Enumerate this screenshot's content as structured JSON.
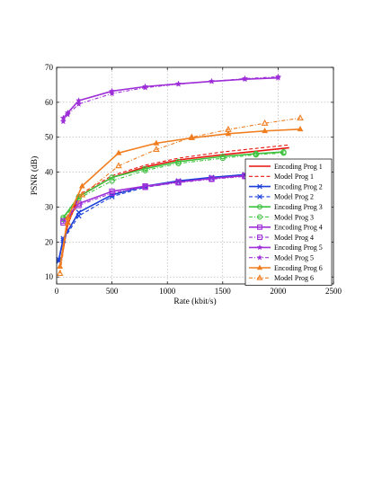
{
  "chart_data": {
    "type": "line",
    "title": "",
    "xlabel": "Rate (kbit/s)",
    "ylabel": "PSNR (dB)",
    "xlim": [
      0,
      2500
    ],
    "ylim": [
      8,
      70
    ],
    "xticks": [
      0,
      500,
      1000,
      1500,
      2000,
      2500
    ],
    "yticks": [
      10,
      20,
      30,
      40,
      50,
      60,
      70
    ],
    "grid": true,
    "legend_position": "lower-right",
    "series": [
      {
        "name": "Encoding Prog 1",
        "color": "#e8140e",
        "dash": "solid",
        "marker": "none",
        "x": [
          30,
          100,
          200,
          500,
          800,
          1100,
          1500,
          1800,
          2100
        ],
        "y": [
          13,
          25,
          33,
          38.5,
          41.5,
          43.5,
          45,
          46,
          47
        ]
      },
      {
        "name": "Model Prog 1",
        "color": "#e8140e",
        "dash": "dashed",
        "marker": "none",
        "x": [
          30,
          100,
          200,
          500,
          800,
          1100,
          1500,
          1800,
          2100
        ],
        "y": [
          13.5,
          25.5,
          33.5,
          39,
          42,
          44,
          45.8,
          46.8,
          47.8
        ]
      },
      {
        "name": "Encoding Prog 2",
        "color": "#1a3fd8",
        "dash": "solid",
        "marker": "x",
        "x": [
          20,
          60,
          200,
          500,
          800,
          1100,
          1400,
          1700,
          2000
        ],
        "y": [
          15,
          21,
          28.5,
          33.5,
          36,
          37.5,
          38.5,
          39.3,
          40
        ]
      },
      {
        "name": "Model Prog 2",
        "color": "#1a3fd8",
        "dash": "dashed",
        "marker": "x",
        "x": [
          20,
          60,
          200,
          500,
          800,
          1100,
          1400,
          1700,
          2000
        ],
        "y": [
          14.5,
          20.5,
          27.5,
          33,
          35.7,
          37.2,
          38.3,
          39,
          39.7
        ]
      },
      {
        "name": "Encoding Prog 3",
        "color": "#3cc23c",
        "dash": "solid",
        "marker": "circle",
        "x": [
          60,
          200,
          500,
          800,
          1100,
          1500,
          1800,
          2050
        ],
        "y": [
          27,
          33,
          38.5,
          41,
          43,
          44.5,
          45.3,
          45.8
        ]
      },
      {
        "name": "Model Prog 3",
        "color": "#3cc23c",
        "dash": "dashdot",
        "marker": "circle",
        "x": [
          60,
          200,
          500,
          800,
          1100,
          1500,
          1800,
          2050
        ],
        "y": [
          26.5,
          32.5,
          37.5,
          40.5,
          42.5,
          44,
          45,
          45.5
        ]
      },
      {
        "name": "Encoding Prog 4",
        "color": "#9e2ed8",
        "dash": "solid",
        "marker": "square",
        "x": [
          60,
          200,
          500,
          800,
          1100,
          1400,
          1700,
          2000
        ],
        "y": [
          26,
          31,
          34.5,
          36,
          37.2,
          38.2,
          39,
          39.8
        ]
      },
      {
        "name": "Model Prog 4",
        "color": "#9e2ed8",
        "dash": "dashdot",
        "marker": "square",
        "x": [
          60,
          200,
          500,
          800,
          1100,
          1400,
          1700,
          2000
        ],
        "y": [
          25.5,
          30.5,
          34,
          35.7,
          37,
          38,
          38.8,
          39.5
        ]
      },
      {
        "name": "Encoding Prog 5",
        "color": "#9e2ed8",
        "dash": "solid",
        "marker": "star",
        "x": [
          60,
          100,
          200,
          500,
          800,
          1100,
          1400,
          1700,
          2000
        ],
        "y": [
          55.5,
          57,
          60.5,
          63.2,
          64.5,
          65.3,
          66,
          66.6,
          67
        ]
      },
      {
        "name": "Model Prog 5",
        "color": "#9e2ed8",
        "dash": "dashdot",
        "marker": "star",
        "x": [
          60,
          100,
          200,
          500,
          800,
          1100,
          1400,
          1700,
          2000
        ],
        "y": [
          54.5,
          56.5,
          59.5,
          62.5,
          64.2,
          65.2,
          66,
          66.8,
          67.3
        ]
      },
      {
        "name": "Encoding Prog 6",
        "color": "#f07d1e",
        "dash": "solid",
        "marker": "triangle",
        "x": [
          30,
          100,
          230,
          560,
          900,
          1220,
          1550,
          1880,
          2200
        ],
        "y": [
          13,
          27,
          36,
          45.5,
          48.3,
          49.8,
          51,
          51.8,
          52.3
        ]
      },
      {
        "name": "Model Prog 6",
        "color": "#f07d1e",
        "dash": "dashdot",
        "marker": "triangle-open",
        "x": [
          30,
          100,
          230,
          560,
          900,
          1220,
          1550,
          1880,
          2200
        ],
        "y": [
          11,
          25.5,
          33.5,
          41.8,
          46.5,
          50,
          52.2,
          54,
          55.5
        ]
      }
    ]
  }
}
